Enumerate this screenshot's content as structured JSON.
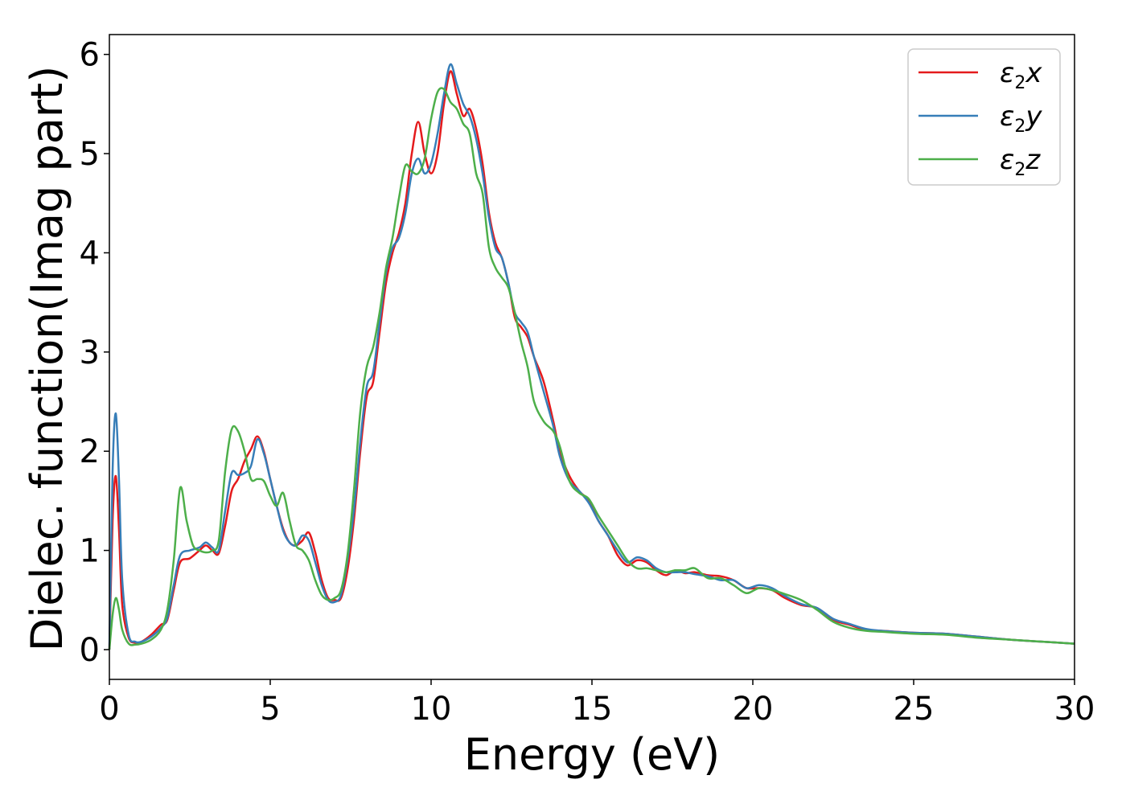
{
  "chart_data": {
    "type": "line",
    "xlabel": "Energy (eV)",
    "ylabel": "Dielec. function(Imag part)",
    "xlim": [
      0,
      30
    ],
    "ylim": [
      -0.3,
      6.2
    ],
    "xticks": [
      0,
      5,
      10,
      15,
      20,
      25,
      30
    ],
    "yticks": [
      0,
      1,
      2,
      3,
      4,
      5,
      6
    ],
    "grid": false,
    "legend_position": "top-right",
    "colors": {
      "x": "#e41a1c",
      "y": "#377eb8",
      "z": "#4daf4a"
    },
    "legend": [
      {
        "key": "x",
        "base": "ε",
        "sub": "2",
        "suffix": "x"
      },
      {
        "key": "y",
        "base": "ε",
        "sub": "2",
        "suffix": "y"
      },
      {
        "key": "z",
        "base": "ε",
        "sub": "2",
        "suffix": "z"
      }
    ],
    "series": [
      {
        "name": "ε2x",
        "points": [
          [
            0,
            0
          ],
          [
            0.1,
            1.3
          ],
          [
            0.2,
            1.75
          ],
          [
            0.3,
            1.2
          ],
          [
            0.4,
            0.45
          ],
          [
            0.6,
            0.12
          ],
          [
            0.8,
            0.07
          ],
          [
            1.0,
            0.08
          ],
          [
            1.3,
            0.15
          ],
          [
            1.6,
            0.25
          ],
          [
            1.8,
            0.3
          ],
          [
            2.0,
            0.6
          ],
          [
            2.2,
            0.88
          ],
          [
            2.5,
            0.92
          ],
          [
            2.8,
            1.0
          ],
          [
            3.0,
            1.05
          ],
          [
            3.2,
            1.0
          ],
          [
            3.4,
            0.97
          ],
          [
            3.6,
            1.25
          ],
          [
            3.8,
            1.6
          ],
          [
            4.0,
            1.72
          ],
          [
            4.2,
            1.9
          ],
          [
            4.4,
            2.02
          ],
          [
            4.6,
            2.15
          ],
          [
            4.8,
            2.0
          ],
          [
            5.0,
            1.72
          ],
          [
            5.2,
            1.45
          ],
          [
            5.4,
            1.22
          ],
          [
            5.6,
            1.08
          ],
          [
            5.8,
            1.05
          ],
          [
            6.0,
            1.1
          ],
          [
            6.2,
            1.18
          ],
          [
            6.4,
            0.98
          ],
          [
            6.6,
            0.7
          ],
          [
            6.8,
            0.52
          ],
          [
            7.0,
            0.5
          ],
          [
            7.2,
            0.52
          ],
          [
            7.4,
            0.8
          ],
          [
            7.6,
            1.3
          ],
          [
            7.8,
            2.0
          ],
          [
            8.0,
            2.55
          ],
          [
            8.2,
            2.7
          ],
          [
            8.4,
            3.2
          ],
          [
            8.6,
            3.7
          ],
          [
            8.8,
            4.0
          ],
          [
            9.0,
            4.2
          ],
          [
            9.2,
            4.5
          ],
          [
            9.4,
            5.0
          ],
          [
            9.6,
            5.32
          ],
          [
            9.8,
            5.0
          ],
          [
            10.0,
            4.8
          ],
          [
            10.2,
            5.0
          ],
          [
            10.4,
            5.5
          ],
          [
            10.6,
            5.83
          ],
          [
            10.8,
            5.6
          ],
          [
            11.0,
            5.38
          ],
          [
            11.2,
            5.45
          ],
          [
            11.4,
            5.25
          ],
          [
            11.6,
            4.9
          ],
          [
            11.8,
            4.4
          ],
          [
            12.0,
            4.1
          ],
          [
            12.2,
            3.95
          ],
          [
            12.4,
            3.7
          ],
          [
            12.6,
            3.35
          ],
          [
            12.8,
            3.25
          ],
          [
            13.0,
            3.15
          ],
          [
            13.2,
            2.95
          ],
          [
            13.5,
            2.7
          ],
          [
            13.8,
            2.3
          ],
          [
            14.0,
            2.0
          ],
          [
            14.3,
            1.75
          ],
          [
            14.6,
            1.6
          ],
          [
            14.9,
            1.5
          ],
          [
            15.2,
            1.3
          ],
          [
            15.5,
            1.15
          ],
          [
            15.8,
            0.95
          ],
          [
            16.1,
            0.85
          ],
          [
            16.4,
            0.9
          ],
          [
            16.7,
            0.88
          ],
          [
            17.0,
            0.8
          ],
          [
            17.3,
            0.75
          ],
          [
            17.6,
            0.8
          ],
          [
            17.9,
            0.77
          ],
          [
            18.2,
            0.78
          ],
          [
            18.6,
            0.75
          ],
          [
            19.0,
            0.74
          ],
          [
            19.4,
            0.7
          ],
          [
            19.8,
            0.62
          ],
          [
            20.2,
            0.62
          ],
          [
            20.6,
            0.6
          ],
          [
            21.0,
            0.52
          ],
          [
            21.5,
            0.45
          ],
          [
            22.0,
            0.42
          ],
          [
            22.5,
            0.3
          ],
          [
            23.0,
            0.25
          ],
          [
            23.5,
            0.2
          ],
          [
            24.0,
            0.19
          ],
          [
            25.0,
            0.17
          ],
          [
            26.0,
            0.16
          ],
          [
            27.0,
            0.13
          ],
          [
            28.0,
            0.1
          ],
          [
            29.0,
            0.08
          ],
          [
            30.0,
            0.06
          ]
        ]
      },
      {
        "name": "ε2y",
        "points": [
          [
            0,
            0
          ],
          [
            0.1,
            1.8
          ],
          [
            0.2,
            2.38
          ],
          [
            0.3,
            1.7
          ],
          [
            0.4,
            0.7
          ],
          [
            0.6,
            0.15
          ],
          [
            0.8,
            0.08
          ],
          [
            1.0,
            0.08
          ],
          [
            1.3,
            0.13
          ],
          [
            1.6,
            0.22
          ],
          [
            1.8,
            0.32
          ],
          [
            2.0,
            0.65
          ],
          [
            2.2,
            0.95
          ],
          [
            2.5,
            1.0
          ],
          [
            2.8,
            1.03
          ],
          [
            3.0,
            1.08
          ],
          [
            3.2,
            1.03
          ],
          [
            3.4,
            1.0
          ],
          [
            3.6,
            1.4
          ],
          [
            3.8,
            1.78
          ],
          [
            4.0,
            1.76
          ],
          [
            4.2,
            1.78
          ],
          [
            4.4,
            1.85
          ],
          [
            4.6,
            2.12
          ],
          [
            4.8,
            1.98
          ],
          [
            5.0,
            1.72
          ],
          [
            5.2,
            1.45
          ],
          [
            5.4,
            1.2
          ],
          [
            5.6,
            1.08
          ],
          [
            5.8,
            1.05
          ],
          [
            6.0,
            1.15
          ],
          [
            6.2,
            1.1
          ],
          [
            6.4,
            0.88
          ],
          [
            6.6,
            0.65
          ],
          [
            6.8,
            0.5
          ],
          [
            7.0,
            0.48
          ],
          [
            7.2,
            0.55
          ],
          [
            7.4,
            0.9
          ],
          [
            7.6,
            1.4
          ],
          [
            7.8,
            2.1
          ],
          [
            8.0,
            2.65
          ],
          [
            8.2,
            2.8
          ],
          [
            8.4,
            3.3
          ],
          [
            8.6,
            3.8
          ],
          [
            8.8,
            4.05
          ],
          [
            9.0,
            4.15
          ],
          [
            9.2,
            4.4
          ],
          [
            9.4,
            4.8
          ],
          [
            9.6,
            4.95
          ],
          [
            9.8,
            4.8
          ],
          [
            10.0,
            4.9
          ],
          [
            10.2,
            5.2
          ],
          [
            10.4,
            5.6
          ],
          [
            10.6,
            5.9
          ],
          [
            10.8,
            5.7
          ],
          [
            11.0,
            5.5
          ],
          [
            11.2,
            5.38
          ],
          [
            11.4,
            5.15
          ],
          [
            11.6,
            4.8
          ],
          [
            11.8,
            4.35
          ],
          [
            12.0,
            4.05
          ],
          [
            12.2,
            3.95
          ],
          [
            12.4,
            3.7
          ],
          [
            12.6,
            3.4
          ],
          [
            12.8,
            3.3
          ],
          [
            13.0,
            3.2
          ],
          [
            13.2,
            2.95
          ],
          [
            13.5,
            2.6
          ],
          [
            13.8,
            2.25
          ],
          [
            14.0,
            1.95
          ],
          [
            14.3,
            1.7
          ],
          [
            14.6,
            1.6
          ],
          [
            14.9,
            1.48
          ],
          [
            15.2,
            1.3
          ],
          [
            15.5,
            1.15
          ],
          [
            15.8,
            1.0
          ],
          [
            16.1,
            0.88
          ],
          [
            16.4,
            0.93
          ],
          [
            16.7,
            0.9
          ],
          [
            17.0,
            0.82
          ],
          [
            17.3,
            0.78
          ],
          [
            17.6,
            0.78
          ],
          [
            17.9,
            0.78
          ],
          [
            18.2,
            0.76
          ],
          [
            18.6,
            0.74
          ],
          [
            19.0,
            0.7
          ],
          [
            19.4,
            0.7
          ],
          [
            19.8,
            0.62
          ],
          [
            20.2,
            0.65
          ],
          [
            20.6,
            0.62
          ],
          [
            21.0,
            0.54
          ],
          [
            21.5,
            0.46
          ],
          [
            22.0,
            0.42
          ],
          [
            22.5,
            0.31
          ],
          [
            23.0,
            0.26
          ],
          [
            23.5,
            0.21
          ],
          [
            24.0,
            0.19
          ],
          [
            25.0,
            0.17
          ],
          [
            26.0,
            0.16
          ],
          [
            27.0,
            0.13
          ],
          [
            28.0,
            0.1
          ],
          [
            29.0,
            0.08
          ],
          [
            30.0,
            0.06
          ]
        ]
      },
      {
        "name": "ε2z",
        "points": [
          [
            0,
            0
          ],
          [
            0.1,
            0.35
          ],
          [
            0.2,
            0.52
          ],
          [
            0.3,
            0.4
          ],
          [
            0.4,
            0.2
          ],
          [
            0.6,
            0.06
          ],
          [
            0.8,
            0.05
          ],
          [
            1.0,
            0.06
          ],
          [
            1.3,
            0.1
          ],
          [
            1.6,
            0.2
          ],
          [
            1.8,
            0.4
          ],
          [
            2.0,
            0.9
          ],
          [
            2.2,
            1.63
          ],
          [
            2.4,
            1.3
          ],
          [
            2.6,
            1.05
          ],
          [
            2.8,
            1.0
          ],
          [
            3.0,
            0.98
          ],
          [
            3.2,
            1.0
          ],
          [
            3.4,
            1.1
          ],
          [
            3.6,
            1.8
          ],
          [
            3.8,
            2.22
          ],
          [
            4.0,
            2.2
          ],
          [
            4.2,
            2.0
          ],
          [
            4.4,
            1.72
          ],
          [
            4.6,
            1.72
          ],
          [
            4.8,
            1.7
          ],
          [
            5.0,
            1.55
          ],
          [
            5.2,
            1.45
          ],
          [
            5.4,
            1.58
          ],
          [
            5.6,
            1.3
          ],
          [
            5.8,
            1.05
          ],
          [
            6.0,
            1.0
          ],
          [
            6.2,
            0.9
          ],
          [
            6.4,
            0.7
          ],
          [
            6.6,
            0.55
          ],
          [
            6.8,
            0.5
          ],
          [
            7.0,
            0.52
          ],
          [
            7.2,
            0.6
          ],
          [
            7.4,
            0.95
          ],
          [
            7.6,
            1.6
          ],
          [
            7.8,
            2.4
          ],
          [
            8.0,
            2.85
          ],
          [
            8.2,
            3.05
          ],
          [
            8.4,
            3.4
          ],
          [
            8.6,
            3.85
          ],
          [
            8.8,
            4.15
          ],
          [
            9.0,
            4.55
          ],
          [
            9.2,
            4.88
          ],
          [
            9.4,
            4.82
          ],
          [
            9.6,
            4.8
          ],
          [
            9.8,
            4.95
          ],
          [
            10.0,
            5.35
          ],
          [
            10.2,
            5.62
          ],
          [
            10.4,
            5.65
          ],
          [
            10.6,
            5.52
          ],
          [
            10.8,
            5.45
          ],
          [
            11.0,
            5.3
          ],
          [
            11.2,
            5.2
          ],
          [
            11.4,
            4.8
          ],
          [
            11.6,
            4.6
          ],
          [
            11.8,
            4.05
          ],
          [
            12.0,
            3.85
          ],
          [
            12.2,
            3.75
          ],
          [
            12.4,
            3.65
          ],
          [
            12.6,
            3.4
          ],
          [
            12.8,
            3.1
          ],
          [
            13.0,
            2.85
          ],
          [
            13.2,
            2.5
          ],
          [
            13.5,
            2.3
          ],
          [
            13.8,
            2.2
          ],
          [
            14.0,
            2.05
          ],
          [
            14.3,
            1.7
          ],
          [
            14.6,
            1.58
          ],
          [
            14.9,
            1.52
          ],
          [
            15.2,
            1.35
          ],
          [
            15.5,
            1.2
          ],
          [
            15.8,
            1.05
          ],
          [
            16.1,
            0.9
          ],
          [
            16.4,
            0.82
          ],
          [
            16.7,
            0.82
          ],
          [
            17.0,
            0.8
          ],
          [
            17.3,
            0.78
          ],
          [
            17.6,
            0.8
          ],
          [
            17.9,
            0.8
          ],
          [
            18.2,
            0.82
          ],
          [
            18.6,
            0.72
          ],
          [
            19.0,
            0.72
          ],
          [
            19.4,
            0.65
          ],
          [
            19.8,
            0.57
          ],
          [
            20.2,
            0.62
          ],
          [
            20.6,
            0.6
          ],
          [
            21.0,
            0.56
          ],
          [
            21.5,
            0.5
          ],
          [
            22.0,
            0.4
          ],
          [
            22.5,
            0.28
          ],
          [
            23.0,
            0.22
          ],
          [
            23.5,
            0.19
          ],
          [
            24.0,
            0.18
          ],
          [
            25.0,
            0.16
          ],
          [
            26.0,
            0.15
          ],
          [
            27.0,
            0.12
          ],
          [
            28.0,
            0.1
          ],
          [
            29.0,
            0.08
          ],
          [
            30.0,
            0.06
          ]
        ]
      }
    ]
  }
}
